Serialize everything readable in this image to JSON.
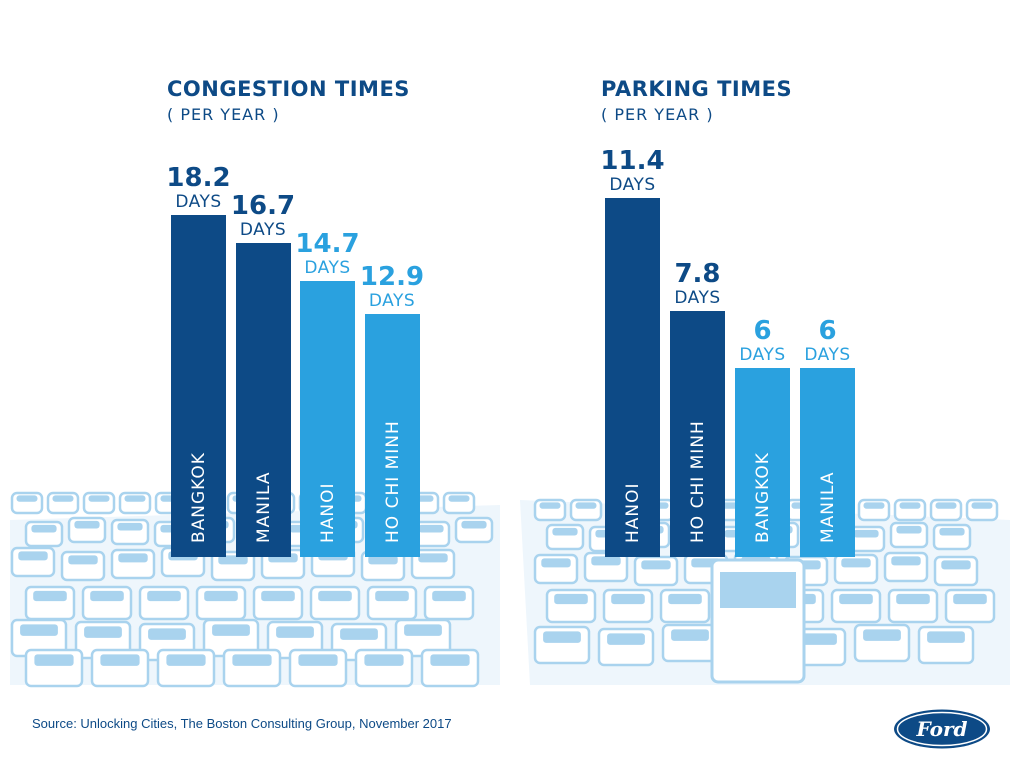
{
  "colors": {
    "dark_blue": "#0d4a86",
    "light_blue": "#2aa1df",
    "traffic": "#a9d3ee"
  },
  "source": "Source: Unlocking Cities, The Boston Consulting Group, November 2017",
  "logo_text": "Ford",
  "logo_icon": "ford-oval-logo",
  "background_icon": "traffic-jam-illustration",
  "chart_data": [
    {
      "type": "bar",
      "title": "CONGESTION TIMES",
      "subtitle": "( PER YEAR )",
      "unit": "DAYS",
      "categories": [
        "BANGKOK",
        "MANILA",
        "HANOI",
        "HO CHI MINH"
      ],
      "values": [
        18.2,
        16.7,
        14.7,
        12.9
      ],
      "value_labels": [
        "18.2",
        "16.7",
        "14.7",
        "12.9"
      ],
      "bar_colors": [
        "#0d4a86",
        "#0d4a86",
        "#2aa1df",
        "#2aa1df"
      ],
      "orientation": "vertical",
      "category_labels": "inside bars, rotated",
      "grid": false
    },
    {
      "type": "bar",
      "title": "PARKING TIMES",
      "subtitle": "( PER YEAR )",
      "unit": "DAYS",
      "categories": [
        "HANOI",
        "HO CHI MINH",
        "BANGKOK",
        "MANILA"
      ],
      "values": [
        11.4,
        7.8,
        6,
        6
      ],
      "value_labels": [
        "11.4",
        "7.8",
        "6",
        "6"
      ],
      "bar_colors": [
        "#0d4a86",
        "#0d4a86",
        "#2aa1df",
        "#2aa1df"
      ],
      "orientation": "vertical",
      "category_labels": "inside bars, rotated",
      "grid": false
    }
  ]
}
